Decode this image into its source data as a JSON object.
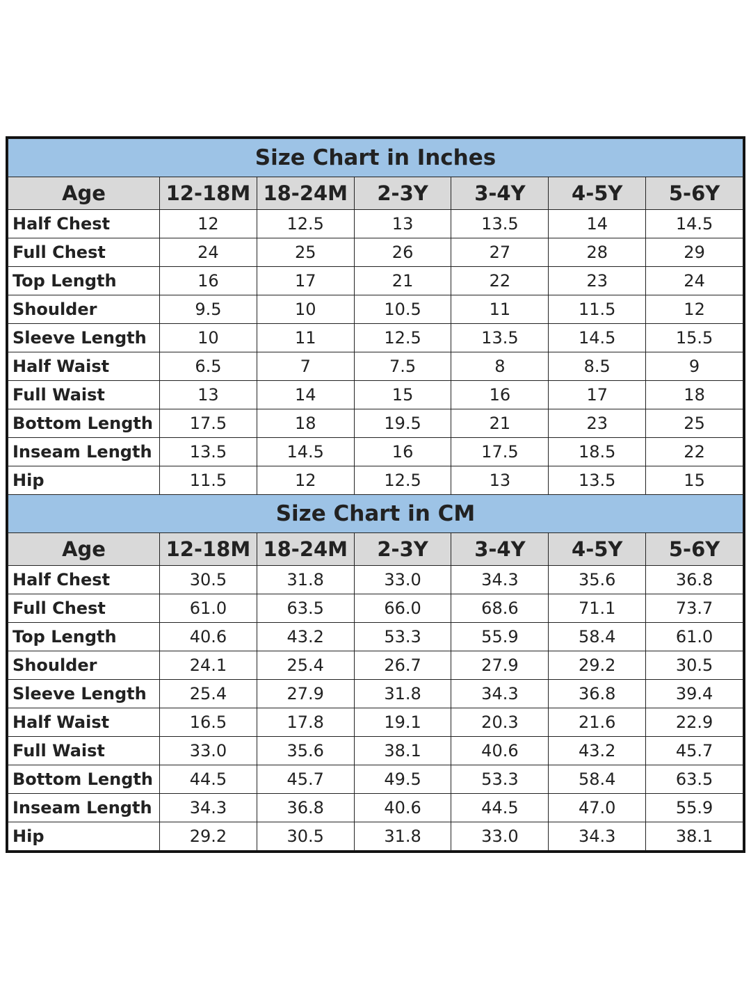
{
  "tables": [
    {
      "title": "Size Chart in Inches",
      "header": [
        "Age",
        "12-18M",
        "18-24M",
        "2-3Y",
        "3-4Y",
        "4-5Y",
        "5-6Y"
      ],
      "rows": [
        [
          "Half Chest",
          "12",
          "12.5",
          "13",
          "13.5",
          "14",
          "14.5"
        ],
        [
          "Full Chest",
          "24",
          "25",
          "26",
          "27",
          "28",
          "29"
        ],
        [
          "Top Length",
          "16",
          "17",
          "21",
          "22",
          "23",
          "24"
        ],
        [
          "Shoulder",
          "9.5",
          "10",
          "10.5",
          "11",
          "11.5",
          "12"
        ],
        [
          "Sleeve Length",
          "10",
          "11",
          "12.5",
          "13.5",
          "14.5",
          "15.5"
        ],
        [
          "Half Waist",
          "6.5",
          "7",
          "7.5",
          "8",
          "8.5",
          "9"
        ],
        [
          "Full Waist",
          "13",
          "14",
          "15",
          "16",
          "17",
          "18"
        ],
        [
          "Bottom Length",
          "17.5",
          "18",
          "19.5",
          "21",
          "23",
          "25"
        ],
        [
          "Inseam Length",
          "13.5",
          "14.5",
          "16",
          "17.5",
          "18.5",
          "22"
        ],
        [
          "Hip",
          "11.5",
          "12",
          "12.5",
          "13",
          "13.5",
          "15"
        ]
      ]
    },
    {
      "title": "Size Chart in CM",
      "header": [
        "Age",
        "12-18M",
        "18-24M",
        "2-3Y",
        "3-4Y",
        "4-5Y",
        "5-6Y"
      ],
      "rows": [
        [
          "Half Chest",
          "30.5",
          "31.8",
          "33.0",
          "34.3",
          "35.6",
          "36.8"
        ],
        [
          "Full Chest",
          "61.0",
          "63.5",
          "66.0",
          "68.6",
          "71.1",
          "73.7"
        ],
        [
          "Top Length",
          "40.6",
          "43.2",
          "53.3",
          "55.9",
          "58.4",
          "61.0"
        ],
        [
          "Shoulder",
          "24.1",
          "25.4",
          "26.7",
          "27.9",
          "29.2",
          "30.5"
        ],
        [
          "Sleeve Length",
          "25.4",
          "27.9",
          "31.8",
          "34.3",
          "36.8",
          "39.4"
        ],
        [
          "Half Waist",
          "16.5",
          "17.8",
          "19.1",
          "20.3",
          "21.6",
          "22.9"
        ],
        [
          "Full Waist",
          "33.0",
          "35.6",
          "38.1",
          "40.6",
          "43.2",
          "45.7"
        ],
        [
          "Bottom Length",
          "44.5",
          "45.7",
          "49.5",
          "53.3",
          "58.4",
          "63.5"
        ],
        [
          "Inseam Length",
          "34.3",
          "36.8",
          "40.6",
          "44.5",
          "47.0",
          "55.9"
        ],
        [
          "Hip",
          "29.2",
          "30.5",
          "31.8",
          "33.0",
          "34.3",
          "38.1"
        ]
      ]
    }
  ]
}
